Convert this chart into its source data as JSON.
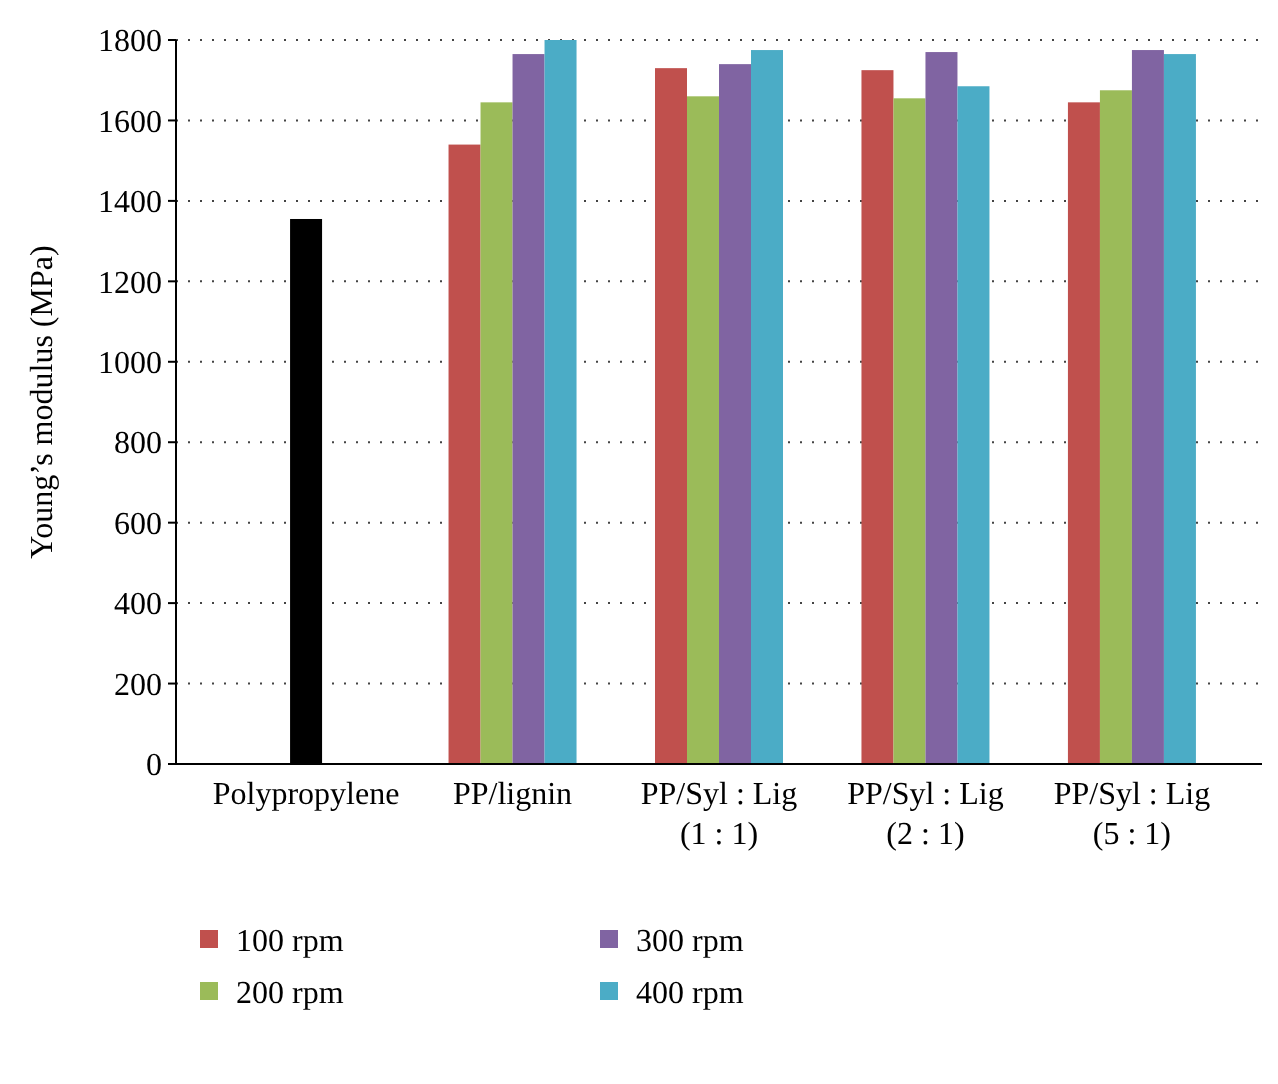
{
  "chart_data": {
    "type": "bar",
    "ylabel": "Young’s modulus (MPa)",
    "categories": [
      "Polypropylene",
      "PP/lignin",
      "PP/Syl : Lig (1 : 1)",
      "PP/Syl : Lig (2 : 1)",
      "PP/Syl : Lig (5 : 1)"
    ],
    "series": [
      {
        "color": "#000000",
        "values": [
          1355,
          null,
          null,
          null,
          null
        ]
      },
      {
        "name": "100 rpm",
        "color": "#c0504d",
        "values": [
          null,
          1540,
          1730,
          1725,
          1645
        ]
      },
      {
        "name": "200 rpm",
        "color": "#9bbb59",
        "values": [
          null,
          1645,
          1660,
          1655,
          1675
        ]
      },
      {
        "name": "300 rpm",
        "color": "#8064a2",
        "values": [
          null,
          1765,
          1740,
          1770,
          1775
        ]
      },
      {
        "name": "400 rpm",
        "color": "#4bacc6",
        "values": [
          null,
          1800,
          1775,
          1685,
          1765
        ]
      }
    ],
    "ylim": [
      0,
      1800
    ],
    "yticks": [
      0,
      200,
      400,
      600,
      800,
      1000,
      1200,
      1400,
      1600,
      1800
    ],
    "grid": "y",
    "legend": "bottom"
  }
}
